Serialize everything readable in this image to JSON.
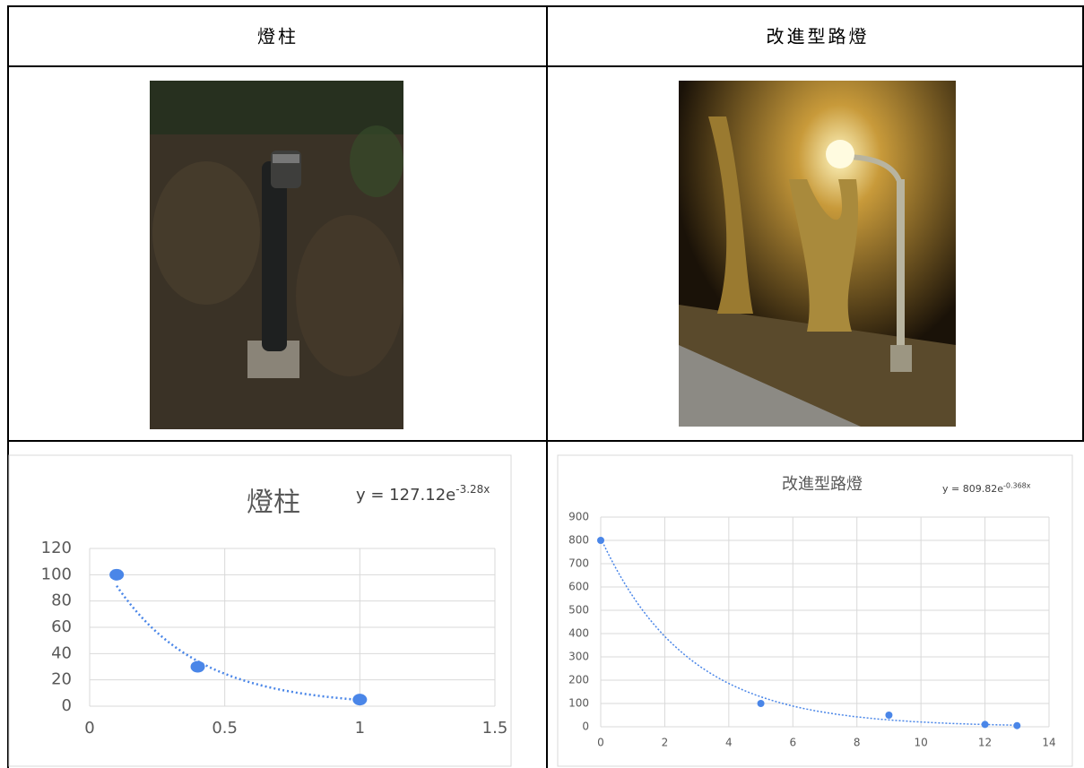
{
  "table": {
    "headers": [
      "燈柱",
      "改進型路燈"
    ]
  },
  "charts": [
    {
      "type": "scatter",
      "title": "燈柱",
      "equation": {
        "base": "y = 127.12e",
        "exponent": "-3.28x"
      },
      "x": [
        0.1,
        0.4,
        1
      ],
      "values": [
        100,
        30,
        5
      ],
      "color": "#4a86e8",
      "trend": {
        "a": 127.12,
        "b": -3.28
      },
      "xlim": [
        0,
        1.5
      ],
      "xticks": [
        0,
        0.5,
        1,
        1.5
      ],
      "ylim": [
        0,
        120
      ],
      "yticks": [
        0,
        20,
        40,
        60,
        80,
        100,
        120
      ],
      "grid": true
    },
    {
      "type": "scatter",
      "title": "改進型路燈",
      "equation": {
        "base": "y = 809.82e",
        "exponent": "-0.368x"
      },
      "x": [
        0,
        5,
        9,
        12,
        13
      ],
      "values": [
        800,
        100,
        50,
        10,
        5
      ],
      "color": "#4a86e8",
      "trend": {
        "a": 809.82,
        "b": -0.368
      },
      "xlim": [
        0,
        14
      ],
      "xticks": [
        0,
        2,
        4,
        6,
        8,
        10,
        12,
        14
      ],
      "ylim": [
        0,
        900
      ],
      "yticks": [
        0,
        100,
        200,
        300,
        400,
        500,
        600,
        700,
        800,
        900
      ],
      "grid": true
    }
  ]
}
